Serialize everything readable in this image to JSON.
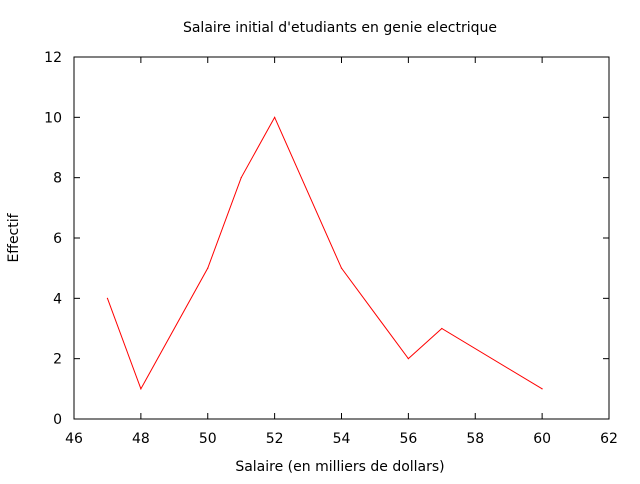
{
  "chart_data": {
    "type": "line",
    "title": "Salaire initial d'etudiants en genie electrique",
    "xlabel": "Salaire (en milliers de dollars)",
    "ylabel": "Effectif",
    "xlim": [
      46,
      62
    ],
    "ylim": [
      0,
      12
    ],
    "xticks": [
      46,
      48,
      50,
      52,
      54,
      56,
      58,
      60,
      62
    ],
    "yticks": [
      0,
      2,
      4,
      6,
      8,
      10,
      12
    ],
    "grid": false,
    "series": [
      {
        "color": "#ff0000",
        "x": [
          47,
          48,
          50,
          51,
          52,
          54,
          56,
          57,
          60
        ],
        "y": [
          4,
          1,
          5,
          8,
          10,
          5,
          2,
          3,
          1
        ]
      }
    ]
  }
}
